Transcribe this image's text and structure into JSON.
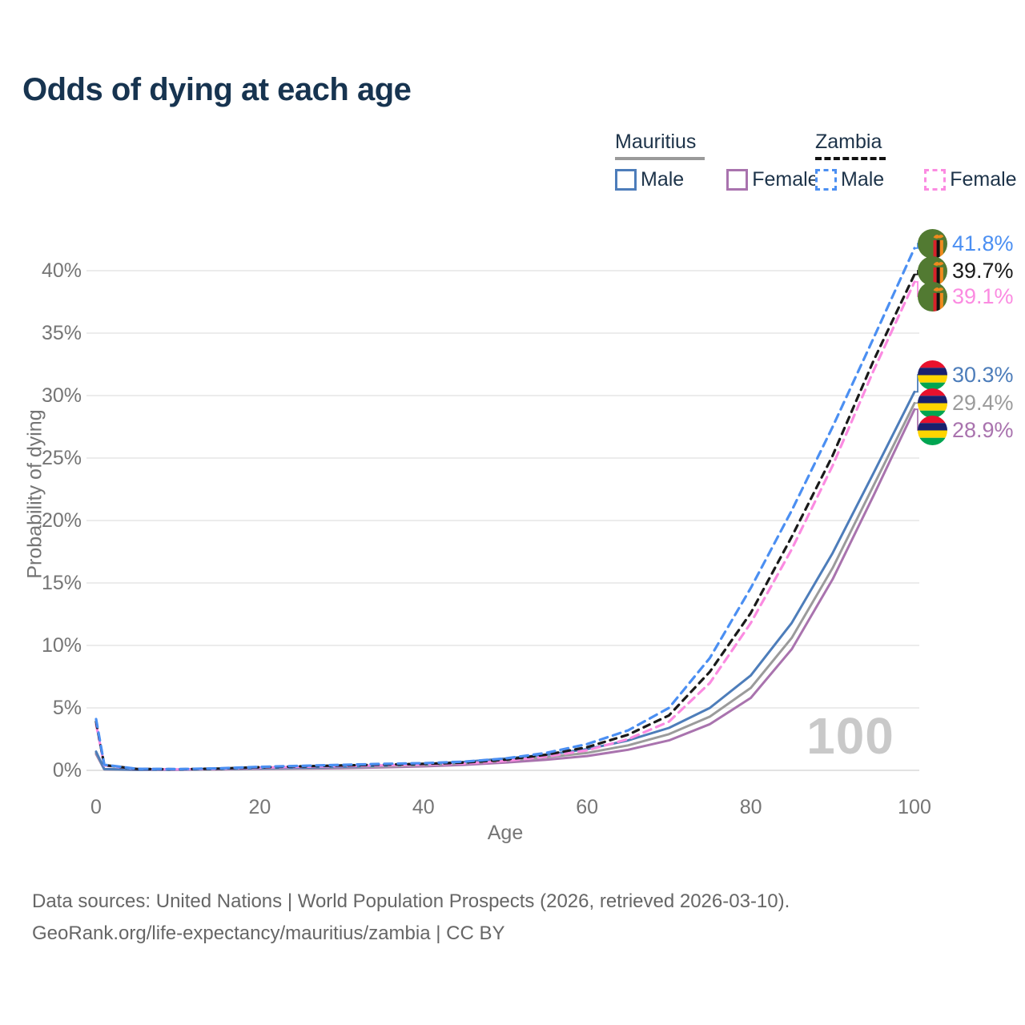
{
  "title": "Odds of dying at each age",
  "legend": {
    "groups": [
      {
        "name": "Mauritius",
        "line_style": "solid",
        "swatch_color": "#9a9a9a",
        "items": [
          {
            "label": "Male",
            "color": "#4d7dba"
          },
          {
            "label": "Female",
            "color": "#a973ae"
          }
        ]
      },
      {
        "name": "Zambia",
        "line_style": "dashed",
        "swatch_color": "#111111",
        "items": [
          {
            "label": "Male",
            "color": "#4b8ff2"
          },
          {
            "label": "Female",
            "color": "#fb8be1"
          }
        ]
      }
    ]
  },
  "chart_data": {
    "type": "line",
    "title": "Odds of dying at each age",
    "xlabel": "Age",
    "ylabel": "Probability of dying",
    "x_ticks": [
      0,
      20,
      40,
      60,
      80,
      100
    ],
    "y_ticks": [
      "0%",
      "5%",
      "10%",
      "15%",
      "20%",
      "25%",
      "30%",
      "35%",
      "40%"
    ],
    "xlim": [
      0,
      100
    ],
    "ylim": [
      0,
      43
    ],
    "grid": "horizontal",
    "legend_position": "top-right",
    "watermark": "100",
    "x": [
      0,
      1,
      5,
      10,
      15,
      20,
      25,
      30,
      35,
      40,
      45,
      50,
      55,
      60,
      65,
      70,
      75,
      80,
      85,
      90,
      95,
      100
    ],
    "series": [
      {
        "name": "Zambia Male",
        "country": "Zambia",
        "sex": "Male",
        "color": "#4b8ff2",
        "dash": true,
        "flag": "zambia",
        "end_label": "41.8%",
        "values": [
          4.1,
          0.45,
          0.12,
          0.1,
          0.16,
          0.28,
          0.36,
          0.44,
          0.52,
          0.58,
          0.7,
          0.95,
          1.4,
          2.1,
          3.2,
          5.0,
          9.0,
          14.6,
          20.8,
          27.5,
          34.6,
          41.8
        ]
      },
      {
        "name": "Zambia Total",
        "country": "Zambia",
        "sex": "Both",
        "color": "#1a1a1a",
        "dash": true,
        "flag": "zambia",
        "end_label": "39.7%",
        "values": [
          3.9,
          0.42,
          0.11,
          0.09,
          0.14,
          0.25,
          0.32,
          0.39,
          0.46,
          0.52,
          0.62,
          0.85,
          1.25,
          1.85,
          2.85,
          4.4,
          7.9,
          12.6,
          18.7,
          25.2,
          32.8,
          39.7
        ]
      },
      {
        "name": "Zambia Female",
        "country": "Zambia",
        "sex": "Female",
        "color": "#fb8be1",
        "dash": true,
        "flag": "zambia",
        "end_label": "39.1%",
        "values": [
          3.7,
          0.4,
          0.1,
          0.08,
          0.12,
          0.22,
          0.28,
          0.34,
          0.4,
          0.46,
          0.55,
          0.75,
          1.1,
          1.6,
          2.5,
          3.9,
          7.0,
          11.8,
          17.7,
          24.4,
          32.0,
          39.1
        ]
      },
      {
        "name": "Mauritius Male",
        "country": "Mauritius",
        "sex": "Male",
        "color": "#4d7dba",
        "dash": false,
        "flag": "mauritius",
        "end_label": "30.3%",
        "values": [
          1.5,
          0.1,
          0.05,
          0.06,
          0.1,
          0.17,
          0.22,
          0.29,
          0.38,
          0.5,
          0.68,
          0.95,
          1.25,
          1.7,
          2.4,
          3.4,
          5.0,
          7.6,
          11.8,
          17.4,
          23.8,
          30.3
        ]
      },
      {
        "name": "Mauritius Total",
        "country": "Mauritius",
        "sex": "Both",
        "color": "#9b9b9b",
        "dash": false,
        "flag": "mauritius",
        "end_label": "29.4%",
        "values": [
          1.4,
          0.09,
          0.05,
          0.05,
          0.08,
          0.14,
          0.18,
          0.24,
          0.31,
          0.41,
          0.56,
          0.78,
          1.05,
          1.4,
          2.0,
          2.9,
          4.3,
          6.6,
          10.6,
          16.2,
          22.8,
          29.4
        ]
      },
      {
        "name": "Mauritius Female",
        "country": "Mauritius",
        "sex": "Female",
        "color": "#a973ae",
        "dash": false,
        "flag": "mauritius",
        "end_label": "28.9%",
        "values": [
          1.3,
          0.08,
          0.04,
          0.05,
          0.07,
          0.11,
          0.14,
          0.18,
          0.24,
          0.32,
          0.44,
          0.62,
          0.85,
          1.15,
          1.65,
          2.4,
          3.7,
          5.8,
          9.7,
          15.3,
          22.0,
          28.9
        ]
      }
    ]
  },
  "footer": {
    "line1": "Data sources: United Nations | World Population Prospects (2026, retrieved 2026-03-10).",
    "line2": "GeoRank.org/life-expectancy/mauritius/zambia | CC BY"
  }
}
